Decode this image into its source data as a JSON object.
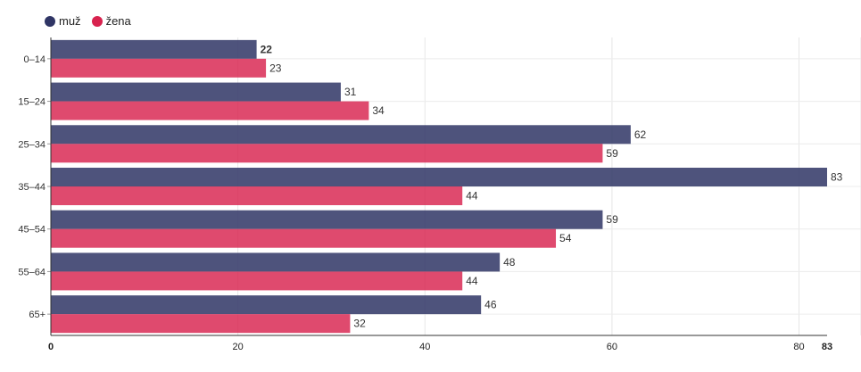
{
  "legend": [
    {
      "label": "muž",
      "color": "#2f3565"
    },
    {
      "label": "žena",
      "color": "#d8224e"
    }
  ],
  "chart_data": {
    "type": "bar",
    "orientation": "horizontal",
    "categories": [
      "0–14",
      "15–24",
      "25–34",
      "35–44",
      "45–54",
      "55–64",
      "65+"
    ],
    "series": [
      {
        "name": "muž",
        "color": "#2f3565",
        "values": [
          22,
          31,
          62,
          83,
          59,
          48,
          46
        ]
      },
      {
        "name": "žena",
        "color": "#d8224e",
        "values": [
          23,
          34,
          59,
          44,
          54,
          44,
          32
        ]
      }
    ],
    "xlim": [
      0,
      83
    ],
    "xticks": [
      "0",
      "20",
      "40",
      "60",
      "80",
      "83"
    ],
    "grid": true,
    "legend_position": "top-left"
  }
}
